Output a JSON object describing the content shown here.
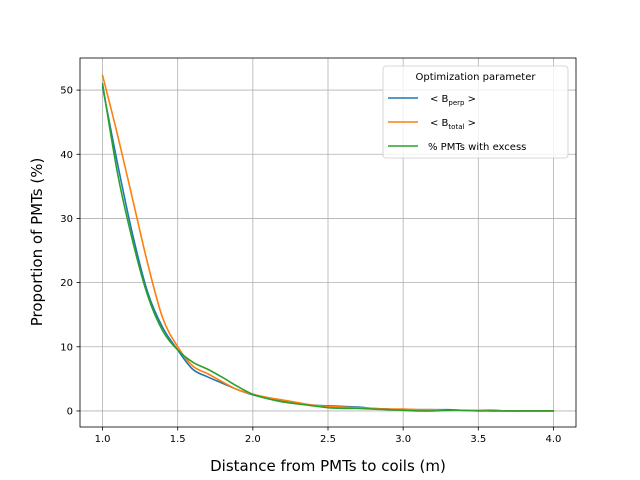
{
  "chart_data": {
    "type": "line",
    "title": "",
    "xlabel": "Distance from PMTs to coils (m)",
    "ylabel": "Proportion of PMTs (%)",
    "xlim": [
      0.85,
      4.15
    ],
    "ylim": [
      -2.5,
      55
    ],
    "grid": true,
    "xticks": [
      1.0,
      1.5,
      2.0,
      2.5,
      3.0,
      3.5,
      4.0
    ],
    "xtick_labels": [
      "1.0",
      "1.5",
      "2.0",
      "2.5",
      "3.0",
      "3.5",
      "4.0"
    ],
    "yticks": [
      0,
      10,
      20,
      30,
      40,
      50
    ],
    "ytick_labels": [
      "0",
      "10",
      "20",
      "30",
      "40",
      "50"
    ],
    "legend": {
      "title": "Optimization parameter",
      "placement": "top-right",
      "entries": [
        {
          "prefix": "< B",
          "sub": "perp",
          "suffix": " >"
        },
        {
          "prefix": "< B",
          "sub": "total",
          "suffix": " >"
        },
        {
          "prefix": "% PMTs with excess",
          "sub": "",
          "suffix": ""
        }
      ]
    },
    "colors": [
      "#1f77b4",
      "#ff7f0e",
      "#2ca02c"
    ],
    "series": [
      {
        "x": [
          1.0,
          1.1,
          1.2,
          1.3,
          1.4,
          1.5,
          1.6,
          1.7,
          1.8,
          1.9,
          2.0,
          2.1,
          2.2,
          2.3,
          2.4,
          2.5,
          2.6,
          2.7,
          2.8,
          2.9,
          3.0,
          3.1,
          3.2,
          3.3,
          3.4,
          3.5,
          3.6,
          3.7,
          3.8,
          3.9,
          4.0
        ],
        "values": [
          50.5,
          38.5,
          27.5,
          18.5,
          13.0,
          9.5,
          6.5,
          5.3,
          4.3,
          3.3,
          2.5,
          2.0,
          1.6,
          1.2,
          0.9,
          0.8,
          0.7,
          0.6,
          0.4,
          0.3,
          0.2,
          0.2,
          0.2,
          0.2,
          0.1,
          0.1,
          0.1,
          0.0,
          0.0,
          0.0,
          0.0
        ]
      },
      {
        "x": [
          1.0,
          1.1,
          1.2,
          1.3,
          1.4,
          1.5,
          1.6,
          1.7,
          1.8,
          1.9,
          2.0,
          2.1,
          2.2,
          2.3,
          2.4,
          2.5,
          2.6,
          2.7,
          2.8,
          2.9,
          3.0,
          3.1,
          3.2,
          3.3,
          3.4,
          3.5,
          3.6,
          3.7,
          3.8,
          3.9,
          4.0
        ],
        "values": [
          52.3,
          43.0,
          33.0,
          23.0,
          14.5,
          10.0,
          7.0,
          5.8,
          4.5,
          3.3,
          2.6,
          2.1,
          1.7,
          1.3,
          0.9,
          0.7,
          0.6,
          0.5,
          0.4,
          0.3,
          0.3,
          0.2,
          0.2,
          0.1,
          0.1,
          0.1,
          0.0,
          0.0,
          0.0,
          0.0,
          0.0
        ]
      },
      {
        "x": [
          1.0,
          1.1,
          1.2,
          1.3,
          1.4,
          1.5,
          1.6,
          1.7,
          1.8,
          1.9,
          2.0,
          2.1,
          2.2,
          2.3,
          2.4,
          2.5,
          2.6,
          2.7,
          2.8,
          2.9,
          3.0,
          3.1,
          3.2,
          3.3,
          3.4,
          3.5,
          3.6,
          3.7,
          3.8,
          3.9,
          4.0
        ],
        "values": [
          51.0,
          37.0,
          26.5,
          18.0,
          12.5,
          9.5,
          7.6,
          6.5,
          5.2,
          3.8,
          2.6,
          1.9,
          1.4,
          1.1,
          0.8,
          0.5,
          0.4,
          0.4,
          0.3,
          0.2,
          0.1,
          0.0,
          0.0,
          0.1,
          0.1,
          0.0,
          0.0,
          0.0,
          0.0,
          0.0,
          0.0
        ]
      }
    ]
  }
}
